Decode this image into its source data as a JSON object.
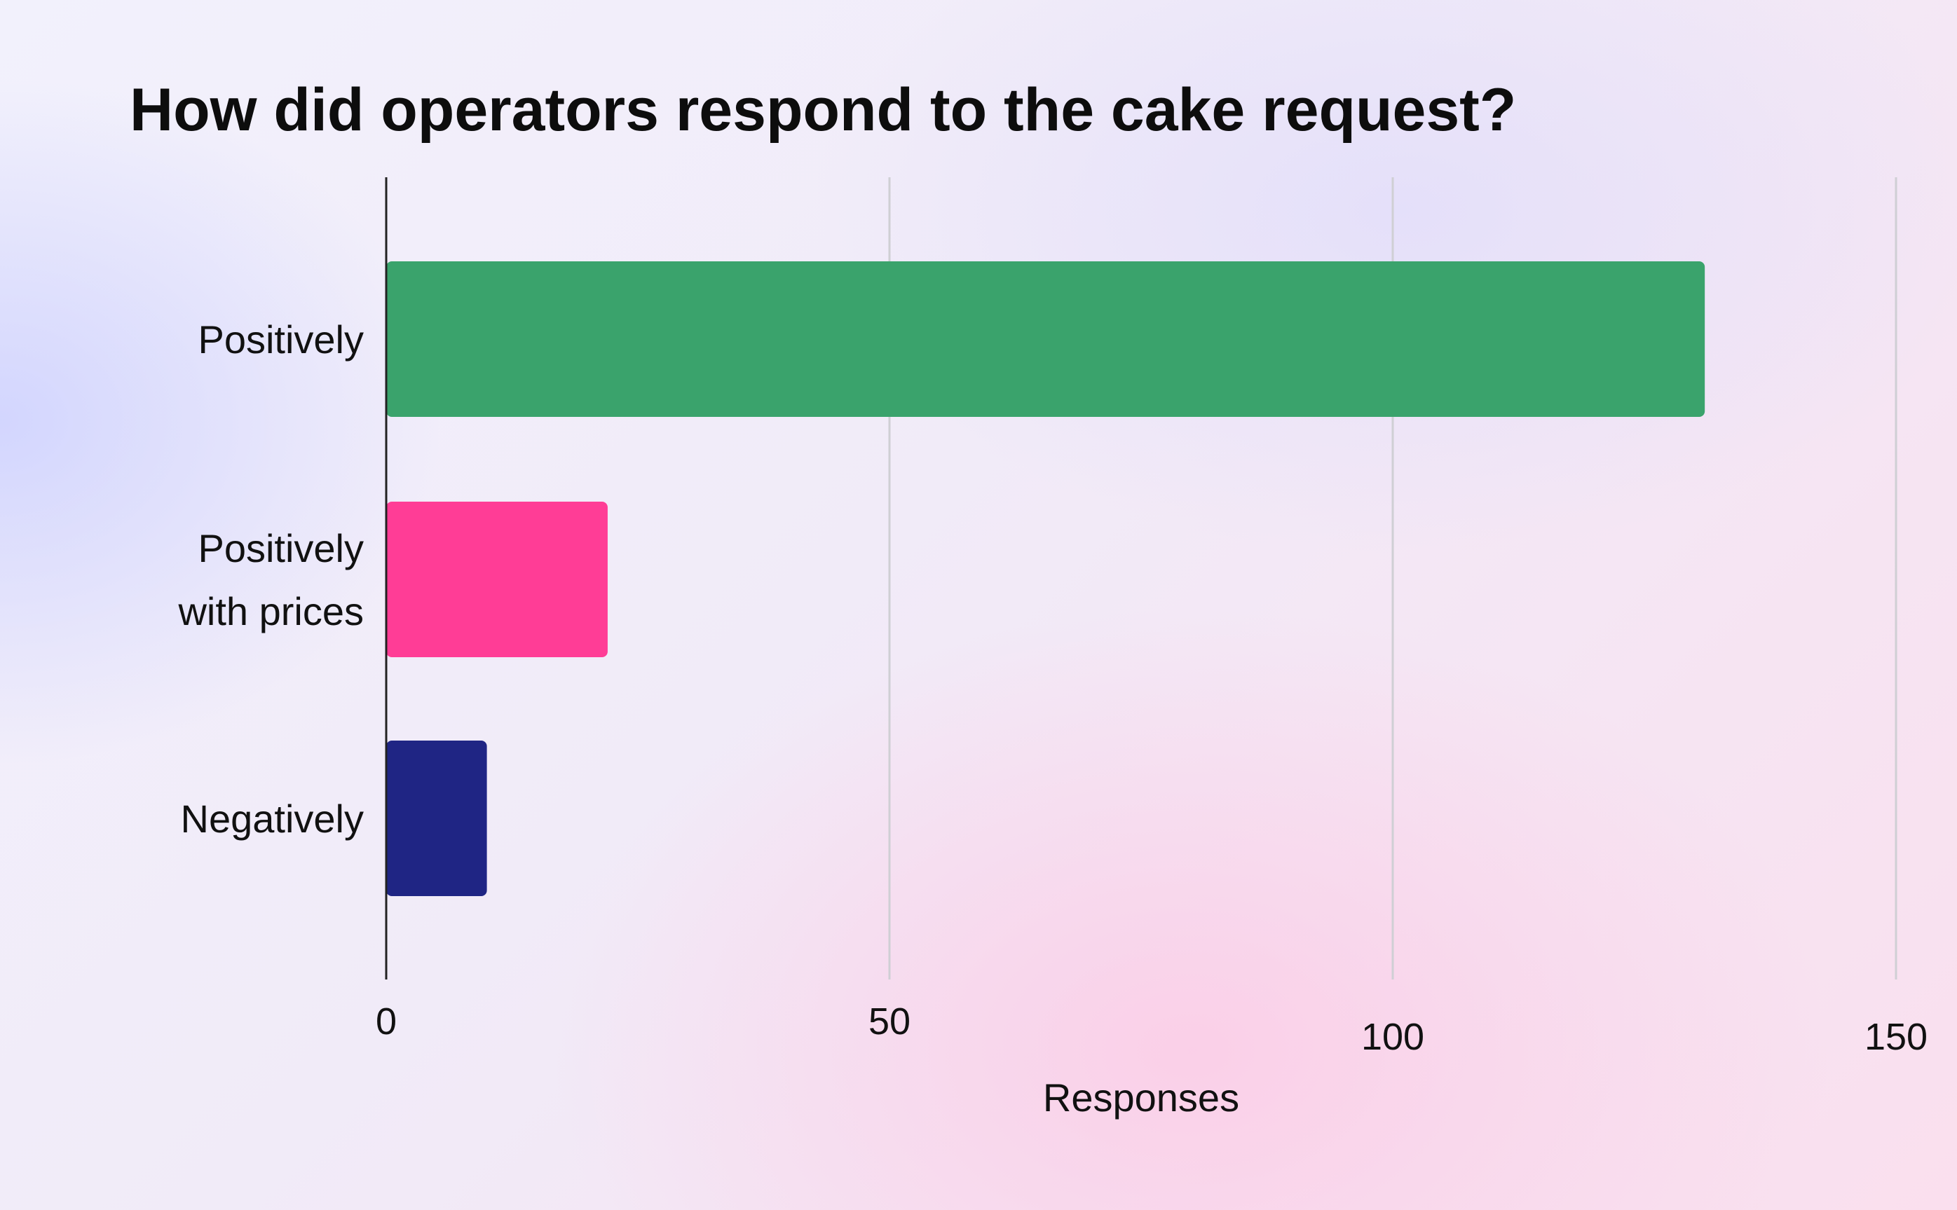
{
  "chart_data": {
    "type": "bar",
    "orientation": "horizontal",
    "title": "How did operators respond to the cake request?",
    "categories": [
      [
        "Positively"
      ],
      [
        "Positively",
        "with prices"
      ],
      [
        "Negatively"
      ]
    ],
    "values": [
      131,
      22,
      10
    ],
    "colors": [
      "#3aa36c",
      "#ff3d96",
      "#1f2584"
    ],
    "xlabel": "Responses",
    "ylabel": "",
    "xlim": [
      0,
      150
    ],
    "xticks": [
      "0",
      "50",
      "100",
      "150"
    ],
    "grid": true
  }
}
